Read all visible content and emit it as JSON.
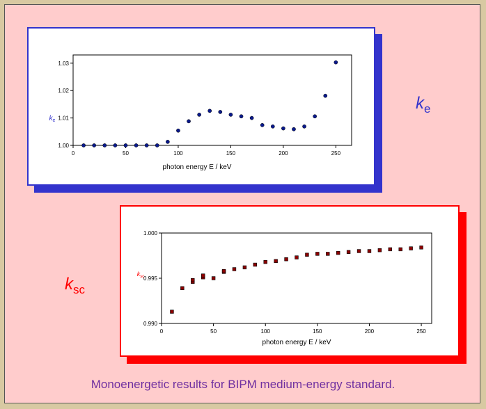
{
  "caption": "Monoenergetic results for BIPM medium-energy standard.",
  "labels": {
    "ke": {
      "symbol": "k",
      "subscript": "e"
    },
    "ksc": {
      "symbol": "k",
      "subscript": "sc"
    }
  },
  "colors": {
    "ke_frame": "#3333cc",
    "ke_marker": "#0a1a8c",
    "ksc_frame": "#ff0000",
    "ksc_marker": "#8b0000"
  },
  "chart_data": [
    {
      "type": "scatter",
      "title": "",
      "xlabel": "photon energy E / keV",
      "ylabel": "ke",
      "xlim": [
        0,
        265
      ],
      "ylim": [
        1.0,
        1.033
      ],
      "xticks": [
        0,
        50,
        100,
        150,
        200,
        250
      ],
      "yticks": [
        1.0,
        1.01,
        1.02,
        1.03
      ],
      "grid": false,
      "marker": "circle",
      "x": [
        10,
        20,
        30,
        40,
        50,
        60,
        70,
        80,
        90,
        100,
        110,
        120,
        130,
        140,
        150,
        160,
        170,
        180,
        190,
        200,
        210,
        220,
        230,
        240,
        250
      ],
      "y": [
        1.0,
        1.0,
        1.0,
        1.0,
        1.0,
        1.0,
        1.0,
        1.0,
        1.0013,
        1.0054,
        1.0088,
        1.0112,
        1.0126,
        1.0122,
        1.0112,
        1.0106,
        1.01,
        1.0074,
        1.0069,
        1.0062,
        1.0059,
        1.0069,
        1.0106,
        1.0181,
        1.0303
      ]
    },
    {
      "type": "scatter",
      "title": "",
      "xlabel": "photon energy E / keV",
      "ylabel": "ksc",
      "xlim": [
        0,
        260
      ],
      "ylim": [
        0.99,
        1.0
      ],
      "xticks": [
        0,
        50,
        100,
        150,
        200,
        250
      ],
      "yticks": [
        0.99,
        0.995,
        1.0
      ],
      "grid": false,
      "marker": "square",
      "x": [
        10,
        20,
        30,
        30,
        40,
        40,
        50,
        60,
        60,
        70,
        80,
        90,
        100,
        110,
        120,
        130,
        140,
        150,
        160,
        170,
        180,
        190,
        200,
        210,
        220,
        230,
        240,
        250
      ],
      "y": [
        0.9913,
        0.9939,
        0.9946,
        0.9948,
        0.9951,
        0.9953,
        0.995,
        0.9957,
        0.9958,
        0.996,
        0.9962,
        0.9965,
        0.9968,
        0.9969,
        0.9971,
        0.9973,
        0.9976,
        0.9977,
        0.9977,
        0.9978,
        0.9979,
        0.998,
        0.998,
        0.9981,
        0.9982,
        0.9982,
        0.9983,
        0.9984
      ]
    }
  ]
}
